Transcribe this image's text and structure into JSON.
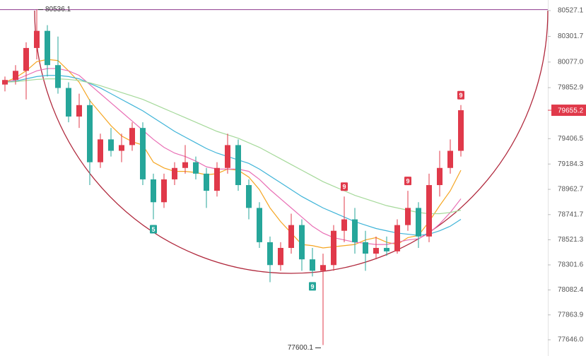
{
  "chart_data": {
    "type": "candlestick",
    "ylim": [
      77504,
      80620
    ],
    "yticks": [
      80527.1,
      80301.7,
      {
        "value": 80077,
        "label": "80077.0"
      },
      79852.9,
      79406.5,
      79184.3,
      78962.7,
      78741.7,
      78521.3,
      78301.6,
      78082.4,
      77863.9,
      {
        "value": 77646,
        "label": "77646.0"
      }
    ],
    "up_color": "#e0394a",
    "down_color": "#26a69a",
    "current_price": 79655.2,
    "high": 80536.1,
    "low": 77600.1,
    "candles": [
      [
        79880,
        79950,
        79820,
        79920
      ],
      [
        79920,
        80050,
        79880,
        80000
      ],
      [
        80000,
        80250,
        79750,
        80200
      ],
      [
        80200,
        80536.1,
        80100,
        80350
      ],
      [
        80350,
        80400,
        79950,
        80050
      ],
      [
        80050,
        80300,
        79800,
        79850
      ],
      [
        79850,
        79900,
        79550,
        79600
      ],
      [
        79600,
        79800,
        79500,
        79700
      ],
      [
        79700,
        79750,
        79000,
        79200
      ],
      [
        79200,
        79450,
        79150,
        79400
      ],
      [
        79400,
        79500,
        79250,
        79300
      ],
      [
        79300,
        79450,
        79200,
        79350
      ],
      [
        79350,
        79550,
        79300,
        79500
      ],
      [
        79500,
        79550,
        79000,
        79050
      ],
      [
        79050,
        79100,
        78700,
        78850
      ],
      [
        78850,
        79100,
        78800,
        79050
      ],
      [
        79050,
        79200,
        79000,
        79150
      ],
      [
        79150,
        79350,
        79100,
        79200
      ],
      [
        79200,
        79250,
        79050,
        79100
      ],
      [
        79100,
        79150,
        78800,
        78950
      ],
      [
        78950,
        79200,
        78900,
        79150
      ],
      [
        79150,
        79450,
        79100,
        79350
      ],
      [
        79350,
        79400,
        78950,
        79000
      ],
      [
        79000,
        79050,
        78700,
        78800
      ],
      [
        78800,
        78850,
        78450,
        78500
      ],
      [
        78500,
        78550,
        78150,
        78300
      ],
      [
        78300,
        78500,
        78250,
        78450
      ],
      [
        78450,
        78750,
        78400,
        78650
      ],
      [
        78650,
        78700,
        78250,
        78350
      ],
      [
        78350,
        78450,
        78200,
        78250
      ],
      [
        78250,
        78400,
        77600.1,
        78300
      ],
      [
        78300,
        78650,
        78250,
        78600
      ],
      [
        78600,
        78900,
        78500,
        78700
      ],
      [
        78700,
        78800,
        78400,
        78500
      ],
      [
        78500,
        78600,
        78250,
        78400
      ],
      [
        78400,
        78550,
        78350,
        78450
      ],
      [
        78450,
        78550,
        78380,
        78420
      ],
      [
        78420,
        78700,
        78400,
        78650
      ],
      [
        78650,
        78950,
        78600,
        78800
      ],
      [
        78800,
        78850,
        78450,
        78550
      ],
      [
        78550,
        79100,
        78500,
        79000
      ],
      [
        79000,
        79300,
        78900,
        79150
      ],
      [
        79150,
        79400,
        79100,
        79300
      ],
      [
        79300,
        79700,
        79250,
        79655.2
      ]
    ],
    "series": [
      {
        "color": "#f5a623",
        "values": [
          79900,
          79940,
          80000,
          80080,
          80100,
          80090,
          80000,
          79900,
          79740,
          79630,
          79520,
          79430,
          79380,
          79350,
          79200,
          79150,
          79120,
          79120,
          79110,
          79090,
          79100,
          79140,
          79130,
          79070,
          78960,
          78800,
          78680,
          78580,
          78480,
          78470,
          78450,
          78460,
          78470,
          78480,
          78520,
          78540,
          78500,
          78480,
          78540,
          78560,
          78680,
          78820,
          78950,
          79130
        ]
      },
      {
        "color": "#e96fb5",
        "values": [
          79900,
          79920,
          79960,
          80000,
          80020,
          80020,
          80000,
          79960,
          79880,
          79800,
          79720,
          79640,
          79560,
          79480,
          79400,
          79330,
          79280,
          79250,
          79210,
          79160,
          79140,
          79140,
          79140,
          79120,
          79050,
          78960,
          78880,
          78800,
          78720,
          78640,
          78580,
          78540,
          78520,
          78500,
          78490,
          78480,
          78480,
          78500,
          78520,
          78530,
          78580,
          78660,
          78760,
          78880
        ]
      },
      {
        "color": "#3fb4d8",
        "values": [
          79900,
          79910,
          79930,
          79950,
          79960,
          79960,
          79950,
          79930,
          79890,
          79850,
          79800,
          79750,
          79700,
          79650,
          79590,
          79530,
          79470,
          79420,
          79370,
          79320,
          79280,
          79250,
          79220,
          79190,
          79140,
          79080,
          79020,
          78960,
          78900,
          78850,
          78800,
          78760,
          78720,
          78680,
          78650,
          78620,
          78600,
          78580,
          78570,
          78560,
          78570,
          78600,
          78640,
          78700
        ]
      },
      {
        "color": "#a5d99a",
        "values": [
          79900,
          79905,
          79915,
          79925,
          79930,
          79930,
          79925,
          79915,
          79895,
          79870,
          79840,
          79810,
          79780,
          79750,
          79710,
          79670,
          79630,
          79590,
          79550,
          79510,
          79470,
          79440,
          79410,
          79370,
          79330,
          79280,
          79230,
          79180,
          79130,
          79080,
          79030,
          78990,
          78950,
          78910,
          78880,
          78850,
          78820,
          78800,
          78780,
          78760,
          78750,
          78750,
          78760,
          78780
        ]
      }
    ],
    "up_signals": [
      null,
      null,
      null,
      null,
      null,
      null,
      null,
      null,
      null,
      null,
      null,
      null,
      null,
      null,
      null,
      null,
      null,
      null,
      null,
      null,
      null,
      null,
      null,
      null,
      null,
      null,
      null,
      null,
      null,
      null,
      null,
      null,
      "9",
      null,
      null,
      null,
      null,
      null,
      "9",
      null,
      null,
      null,
      null,
      "9"
    ],
    "down_signals": [
      null,
      null,
      null,
      null,
      null,
      null,
      null,
      null,
      null,
      null,
      null,
      null,
      null,
      null,
      "5",
      null,
      null,
      null,
      null,
      null,
      null,
      null,
      null,
      null,
      null,
      null,
      null,
      null,
      null,
      "9",
      null,
      null,
      null,
      null,
      null,
      null,
      null,
      null,
      null,
      null,
      null,
      null,
      null,
      null
    ]
  }
}
